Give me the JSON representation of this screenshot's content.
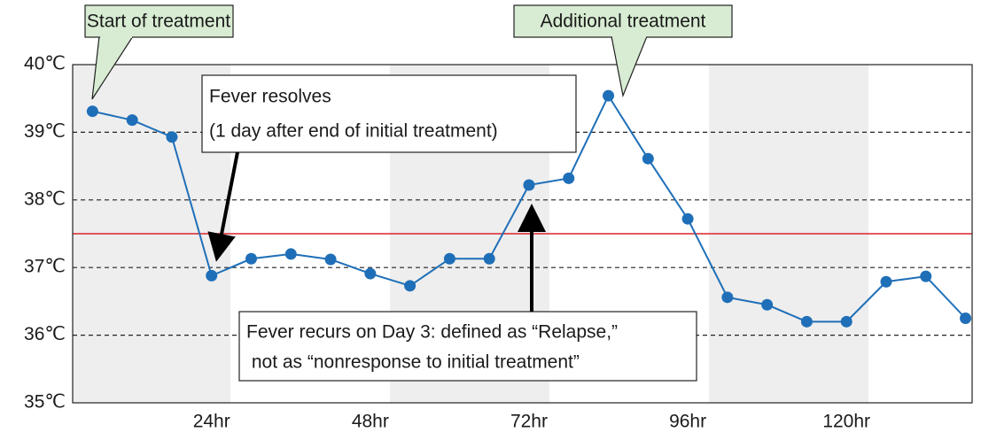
{
  "chart_data": {
    "type": "line",
    "x": [
      6,
      12,
      18,
      24,
      30,
      36,
      42,
      48,
      54,
      60,
      66,
      72,
      78,
      84,
      90,
      96,
      102,
      108,
      114,
      120,
      126,
      132,
      138
    ],
    "series": [
      {
        "color": "#1f6fb8",
        "values": [
          39.31,
          39.18,
          38.93,
          36.88,
          37.13,
          37.2,
          37.12,
          36.91,
          36.73,
          37.13,
          37.13,
          38.22,
          38.32,
          39.54,
          38.61,
          37.72,
          36.56,
          36.45,
          36.2,
          36.2,
          36.79,
          36.87,
          36.25
        ]
      }
    ],
    "threshold": 37.5,
    "threshold_color": "#d9232a",
    "xlim": [
      3,
      139
    ],
    "ylim": [
      35,
      40
    ],
    "xticks": [
      {
        "value": 24,
        "label": "24hr"
      },
      {
        "value": 48,
        "label": "48hr"
      },
      {
        "value": 72,
        "label": "72hr"
      },
      {
        "value": 96,
        "label": "96hr"
      },
      {
        "value": 120,
        "label": "120hr"
      }
    ],
    "yticks": [
      {
        "value": 35,
        "label": "35℃"
      },
      {
        "value": 36,
        "label": "36℃"
      },
      {
        "value": 37,
        "label": "37℃"
      },
      {
        "value": 38,
        "label": "38℃"
      },
      {
        "value": 39,
        "label": "39℃"
      },
      {
        "value": 40,
        "label": "40℃"
      }
    ],
    "grid": true,
    "annotations": {
      "start": "Start of treatment",
      "additional": "Additional treatment",
      "resolves": [
        "Fever resolves",
        "(1 day after end of initial treatment)"
      ],
      "recurs": [
        "Fever recurs on Day 3: defined as “Relapse,”",
        " not as “nonresponse to initial treatment”"
      ]
    }
  }
}
